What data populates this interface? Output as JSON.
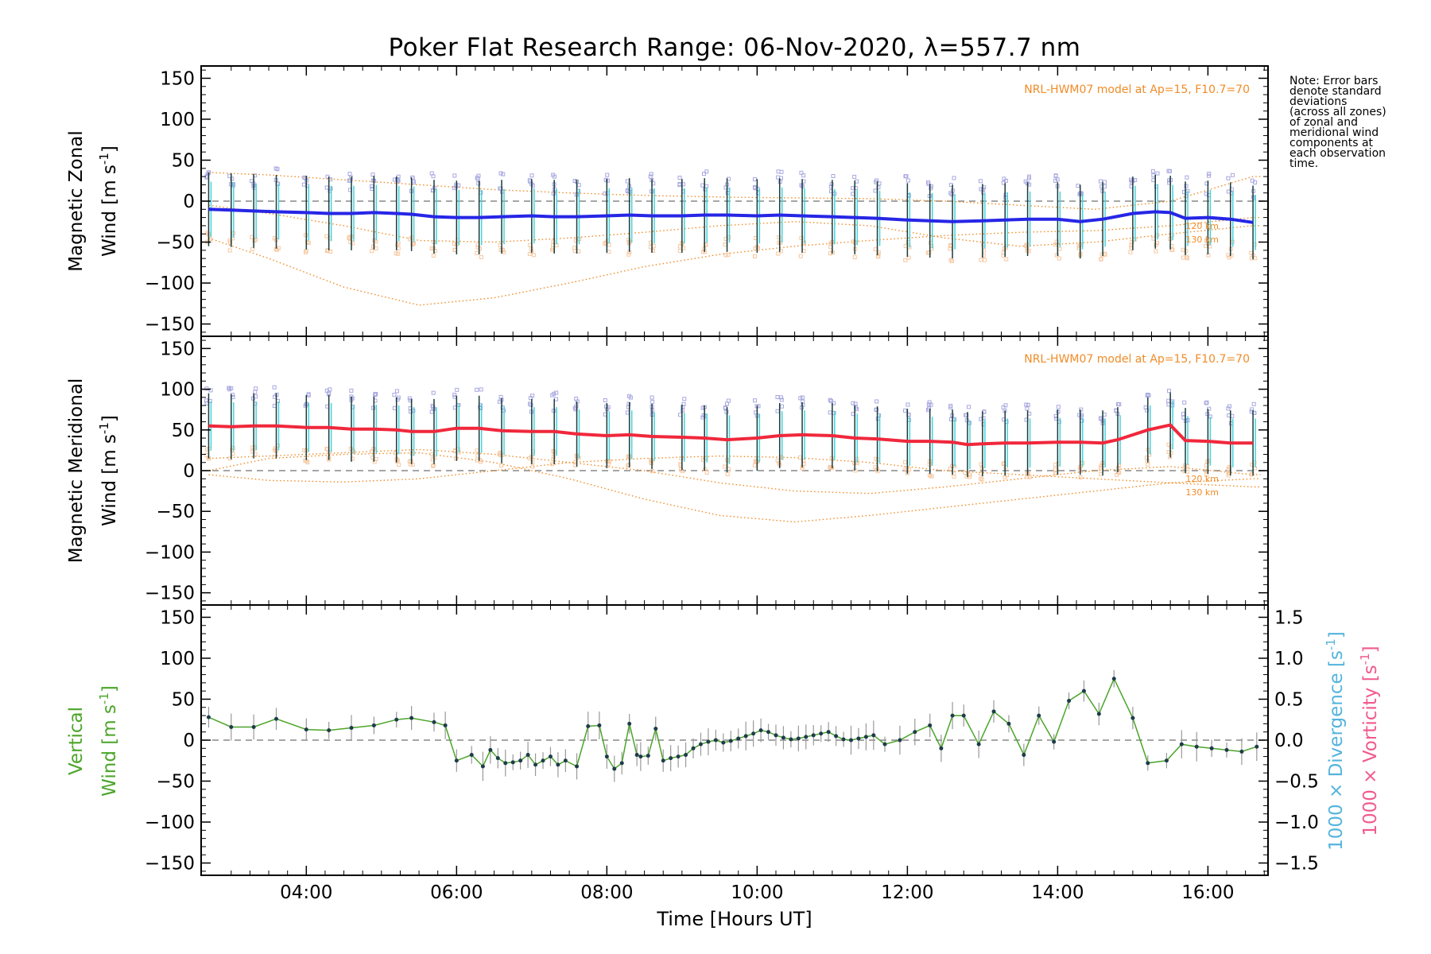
{
  "title": "Poker Flat Research Range: 06-Nov-2020, λ=557.7 nm",
  "note": [
    "Note: Error bars",
    "denote standard",
    "deviations",
    "(across all zones)",
    "of zonal and",
    "meridional wind",
    "components at",
    "each observation",
    "time."
  ],
  "colors": {
    "zonal_mean": "#2626e6",
    "meridional_mean": "#f0283c",
    "vertical": "#4ca52a",
    "vertical_point": "#1e3c4a",
    "model": "#f08c28",
    "scatter_hi": "#a8a8e0",
    "scatter_lo": "#f7c7a0",
    "divergence": "#55b4dc",
    "vorticity": "#f05a8c",
    "errorbar": "#1a3c3c",
    "zone_cyan": "#46d2dc"
  },
  "chart_data": [
    {
      "type": "line",
      "panel": "zonal",
      "ylabel_line1": "Magnetic Zonal",
      "ylabel_line2": "Wind [m s",
      "ylabel_sup": "-1",
      "ylabel_close": "]",
      "ylim": [
        -165,
        165
      ],
      "yticks": [
        "150",
        "100",
        "50",
        "0",
        "−50",
        "−100",
        "−150"
      ],
      "ytick_values": [
        150,
        100,
        50,
        0,
        -50,
        -100,
        -150
      ],
      "model_note": "NRL-HWM07 model at Ap=15, F10.7=70",
      "alt_labels": [
        "120 km",
        "130 km"
      ],
      "series": [
        {
          "x": [
            2.7,
            3.0,
            3.3,
            3.6,
            4.0,
            4.3,
            4.6,
            4.9,
            5.2,
            5.4,
            5.7,
            6.0,
            6.3,
            6.6,
            7.0,
            7.3,
            7.6,
            8.0,
            8.3,
            8.6,
            9.0,
            9.3,
            9.6,
            10.0,
            10.3,
            10.6,
            11.0,
            11.3,
            11.6,
            12.0,
            12.3,
            12.6,
            13.0,
            13.3,
            13.6,
            14.0,
            14.3,
            14.6,
            15.0,
            15.3,
            15.5,
            15.7,
            16.0,
            16.3,
            16.6
          ],
          "y": [
            -10,
            -11,
            -12,
            -13,
            -14,
            -15,
            -15,
            -14,
            -15,
            -16,
            -19,
            -20,
            -20,
            -19,
            -18,
            -19,
            -19,
            -18,
            -17,
            -18,
            -18,
            -17,
            -17,
            -18,
            -17,
            -18,
            -19,
            -20,
            -21,
            -23,
            -24,
            -25,
            -24,
            -23,
            -22,
            -22,
            -25,
            -22,
            -15,
            -13,
            -14,
            -21,
            -20,
            -22,
            -26
          ]
        }
      ],
      "model_curves": [
        {
          "x": [
            2.7,
            3.5,
            4.5,
            5.5,
            6.5,
            7.5,
            8.5,
            9.5,
            10.5,
            11.5,
            12.5,
            13.5,
            14.5,
            15.5,
            16.6
          ],
          "y": [
            35,
            32,
            26,
            20,
            14,
            10,
            7,
            5,
            4,
            3,
            0,
            -5,
            -10,
            0,
            30
          ]
        },
        {
          "x": [
            2.7,
            3.5,
            4.5,
            5.5,
            6.5,
            7.5,
            8.5,
            9.5,
            10.5,
            11.5,
            12.5,
            13.5,
            14.5,
            15.5,
            16.6
          ],
          "y": [
            -45,
            -70,
            -105,
            -127,
            -118,
            -100,
            -80,
            -65,
            -55,
            -48,
            -42,
            -38,
            -36,
            -30,
            -20
          ]
        },
        {
          "x": [
            2.7,
            3.5,
            4.5,
            5.5,
            6.5,
            7.5,
            8.5,
            9.5,
            10.5,
            11.5,
            12.5,
            13.5,
            14.5,
            15.5,
            16.6
          ],
          "y": [
            -5,
            -15,
            -30,
            -48,
            -50,
            -45,
            -38,
            -30,
            -25,
            -30,
            -45,
            -55,
            -50,
            -40,
            -30
          ]
        }
      ]
    },
    {
      "type": "line",
      "panel": "meridional",
      "ylabel_line1": "Magnetic Meridional",
      "ylabel_line2": "Wind [m s",
      "ylabel_sup": "-1",
      "ylabel_close": "]",
      "ylim": [
        -165,
        165
      ],
      "yticks": [
        "150",
        "100",
        "50",
        "0",
        "−50",
        "−100",
        "−150"
      ],
      "ytick_values": [
        150,
        100,
        50,
        0,
        -50,
        -100,
        -150
      ],
      "model_note": "NRL-HWM07 model at Ap=15, F10.7=70",
      "alt_labels": [
        "120 km",
        "130 km"
      ],
      "series": [
        {
          "x": [
            2.7,
            3.0,
            3.3,
            3.6,
            4.0,
            4.3,
            4.6,
            4.9,
            5.2,
            5.4,
            5.7,
            6.0,
            6.3,
            6.6,
            7.0,
            7.3,
            7.6,
            8.0,
            8.3,
            8.6,
            9.0,
            9.3,
            9.6,
            10.0,
            10.3,
            10.6,
            11.0,
            11.3,
            11.6,
            12.0,
            12.3,
            12.6,
            12.8,
            13.0,
            13.3,
            13.6,
            14.0,
            14.3,
            14.6,
            14.8,
            15.2,
            15.5,
            15.7,
            16.0,
            16.3,
            16.6
          ],
          "y": [
            55,
            54,
            55,
            55,
            53,
            53,
            51,
            51,
            50,
            48,
            48,
            52,
            52,
            49,
            48,
            48,
            45,
            43,
            44,
            42,
            41,
            40,
            38,
            40,
            43,
            44,
            43,
            40,
            39,
            36,
            36,
            35,
            32,
            33,
            34,
            34,
            35,
            35,
            34,
            38,
            50,
            56,
            37,
            36,
            34,
            34
          ]
        }
      ],
      "model_curves": [
        {
          "x": [
            2.7,
            3.5,
            4.5,
            5.5,
            6.5,
            7.5,
            8.5,
            9.5,
            10.5,
            11.5,
            12.5,
            13.5,
            14.5,
            15.5,
            16.6
          ],
          "y": [
            15,
            18,
            22,
            26,
            20,
            10,
            0,
            -15,
            -25,
            -28,
            -20,
            -10,
            0,
            5,
            -5
          ]
        },
        {
          "x": [
            2.7,
            3.5,
            4.5,
            5.5,
            6.5,
            7.5,
            8.5,
            9.5,
            10.5,
            11.5,
            12.5,
            13.5,
            14.5,
            15.5,
            16.6
          ],
          "y": [
            0,
            15,
            20,
            22,
            10,
            -10,
            -35,
            -55,
            -63,
            -55,
            -45,
            -35,
            -25,
            -15,
            -10
          ]
        },
        {
          "x": [
            2.7,
            3.5,
            4.5,
            5.5,
            6.5,
            7.5,
            8.5,
            9.5,
            10.5,
            11.5,
            12.5,
            13.5,
            14.5,
            15.5,
            16.6
          ],
          "y": [
            -5,
            -12,
            -14,
            -10,
            0,
            10,
            15,
            18,
            16,
            10,
            0,
            -5,
            -10,
            -15,
            -20
          ]
        }
      ]
    },
    {
      "type": "line",
      "panel": "vertical",
      "ylabel_line1": "Vertical",
      "ylabel_line2": "Wind [m s",
      "ylabel_sup": "-1",
      "ylabel_close": "]",
      "ylim": [
        -165,
        165
      ],
      "yticks": [
        "150",
        "100",
        "50",
        "0",
        "−50",
        "−100",
        "−150"
      ],
      "ytick_values": [
        150,
        100,
        50,
        0,
        -50,
        -100,
        -150
      ],
      "y2label_a": "1000 × Divergence [s",
      "y2label_b": "1000 × Vorticity [s",
      "y2_sup": "-1",
      "y2_close": "]",
      "y2ticks": [
        "1.5",
        "1.0",
        "0.5",
        "0.0",
        "−0.5",
        "−1.0",
        "−1.5"
      ],
      "y2tick_values": [
        1.5,
        1.0,
        0.5,
        0.0,
        -0.5,
        -1.0,
        -1.5
      ],
      "xlabel": "Time [Hours UT]",
      "xticks": [
        "04:00",
        "06:00",
        "08:00",
        "10:00",
        "12:00",
        "14:00",
        "16:00"
      ],
      "xtick_values": [
        4,
        6,
        8,
        10,
        12,
        14,
        16
      ],
      "xlim": [
        2.6,
        16.8
      ],
      "series": [
        {
          "x": [
            2.7,
            3.0,
            3.3,
            3.6,
            4.0,
            4.3,
            4.6,
            4.9,
            5.2,
            5.4,
            5.7,
            5.85,
            6.0,
            6.2,
            6.35,
            6.45,
            6.55,
            6.65,
            6.75,
            6.85,
            6.95,
            7.05,
            7.15,
            7.25,
            7.35,
            7.45,
            7.6,
            7.75,
            7.9,
            8.0,
            8.1,
            8.2,
            8.3,
            8.4,
            8.45,
            8.55,
            8.65,
            8.75,
            8.85,
            8.95,
            9.05,
            9.15,
            9.25,
            9.35,
            9.45,
            9.55,
            9.65,
            9.75,
            9.85,
            9.95,
            10.05,
            10.15,
            10.25,
            10.35,
            10.45,
            10.55,
            10.65,
            10.75,
            10.85,
            10.95,
            11.05,
            11.15,
            11.25,
            11.35,
            11.45,
            11.55,
            11.7,
            11.9,
            12.1,
            12.3,
            12.45,
            12.6,
            12.75,
            12.95,
            13.15,
            13.35,
            13.55,
            13.75,
            13.95,
            14.15,
            14.35,
            14.55,
            14.75,
            15.0,
            15.2,
            15.45,
            15.65,
            15.85,
            16.05,
            16.25,
            16.45,
            16.65
          ],
          "y": [
            28,
            16,
            16,
            26,
            13,
            12,
            15,
            18,
            25,
            27,
            22,
            18,
            -25,
            -18,
            -32,
            -12,
            -22,
            -28,
            -27,
            -25,
            -18,
            -30,
            -25,
            -20,
            -30,
            -25,
            -32,
            17,
            18,
            -20,
            -35,
            -28,
            20,
            -18,
            -20,
            -19,
            14,
            -25,
            -22,
            -20,
            -18,
            -10,
            -5,
            -2,
            0,
            -3,
            -1,
            2,
            5,
            8,
            12,
            10,
            6,
            3,
            1,
            2,
            4,
            6,
            8,
            10,
            5,
            1,
            0,
            2,
            4,
            6,
            -5,
            0,
            10,
            18,
            -10,
            30,
            30,
            -5,
            35,
            20,
            -18,
            30,
            -2,
            48,
            60,
            32,
            75,
            27,
            -28,
            -25,
            -5,
            -8,
            -10,
            -12,
            -14,
            -8
          ]
        }
      ]
    }
  ]
}
